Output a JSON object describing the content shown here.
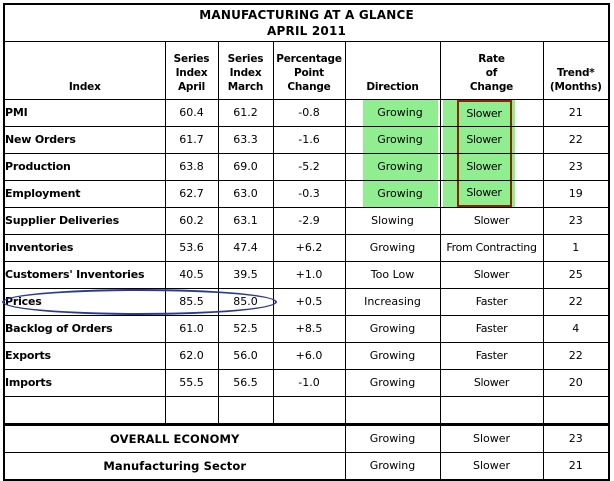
{
  "chart_data": {
    "type": "table",
    "title": "MANUFACTURING AT A GLANCE",
    "subtitle": "APRIL 2011",
    "columns": {
      "index": "Index",
      "april": "Series\nIndex\nApril",
      "march": "Series\nIndex\nMarch",
      "change": "Percentage\nPoint\nChange",
      "direction": "Direction",
      "rate": "Rate\nof\nChange",
      "trend": "Trend*\n(Months)"
    },
    "rows": [
      {
        "index": "PMI",
        "april": "60.4",
        "march": "61.2",
        "change": "-0.8",
        "direction": "Growing",
        "rate": "Slower",
        "trend": "21",
        "green_highlight": true,
        "red_box": true,
        "circled": false
      },
      {
        "index": "New Orders",
        "april": "61.7",
        "march": "63.3",
        "change": "-1.6",
        "direction": "Growing",
        "rate": "Slower",
        "trend": "22",
        "green_highlight": true,
        "red_box": true,
        "circled": false
      },
      {
        "index": "Production",
        "april": "63.8",
        "march": "69.0",
        "change": "-5.2",
        "direction": "Growing",
        "rate": "Slower",
        "trend": "23",
        "green_highlight": true,
        "red_box": true,
        "circled": false
      },
      {
        "index": "Employment",
        "april": "62.7",
        "march": "63.0",
        "change": "-0.3",
        "direction": "Growing",
        "rate": "Slower",
        "trend": "19",
        "green_highlight": true,
        "red_box": true,
        "circled": false
      },
      {
        "index": "Supplier Deliveries",
        "april": "60.2",
        "march": "63.1",
        "change": "-2.9",
        "direction": "Slowing",
        "rate": "Slower",
        "trend": "23",
        "green_highlight": false,
        "red_box": false,
        "circled": false
      },
      {
        "index": "Inventories",
        "april": "53.6",
        "march": "47.4",
        "change": "+6.2",
        "direction": "Growing",
        "rate": "From Contracting",
        "trend": "1",
        "green_highlight": false,
        "red_box": false,
        "circled": false
      },
      {
        "index": "Customers' Inventories",
        "april": "40.5",
        "march": "39.5",
        "change": "+1.0",
        "direction": "Too Low",
        "rate": "Slower",
        "trend": "25",
        "green_highlight": false,
        "red_box": false,
        "circled": false
      },
      {
        "index": "Prices",
        "april": "85.5",
        "march": "85.0",
        "change": "+0.5",
        "direction": "Increasing",
        "rate": "Faster",
        "trend": "22",
        "green_highlight": false,
        "red_box": false,
        "circled": true
      },
      {
        "index": "Backlog of Orders",
        "april": "61.0",
        "march": "52.5",
        "change": "+8.5",
        "direction": "Growing",
        "rate": "Faster",
        "trend": "4",
        "green_highlight": false,
        "red_box": false,
        "circled": false
      },
      {
        "index": "Exports",
        "april": "62.0",
        "march": "56.0",
        "change": "+6.0",
        "direction": "Growing",
        "rate": "Faster",
        "trend": "22",
        "green_highlight": false,
        "red_box": false,
        "circled": false
      },
      {
        "index": "Imports",
        "april": "55.5",
        "march": "56.5",
        "change": "-1.0",
        "direction": "Growing",
        "rate": "Slower",
        "trend": "20",
        "green_highlight": false,
        "red_box": false,
        "circled": false
      }
    ],
    "summary_rows": [
      {
        "label": "OVERALL ECONOMY",
        "direction": "Growing",
        "rate": "Slower",
        "trend": "23"
      },
      {
        "label": "Manufacturing Sector",
        "direction": "Growing",
        "rate": "Slower",
        "trend": "21"
      }
    ],
    "layout_hints": {
      "grid": "on",
      "annotations": [
        "green highlight on Direction and Rate of Change cells of first four rows",
        "dark red box around the four Slower values in Rate of Change column",
        "blue ellipse circling Prices row values 85.5 and 85.0"
      ]
    }
  },
  "colors": {
    "highlight_green": "#90EE90",
    "red_box": "#8B2500",
    "circle_blue": "#2B3990",
    "border": "#000000",
    "background": "#FFFFFF"
  }
}
